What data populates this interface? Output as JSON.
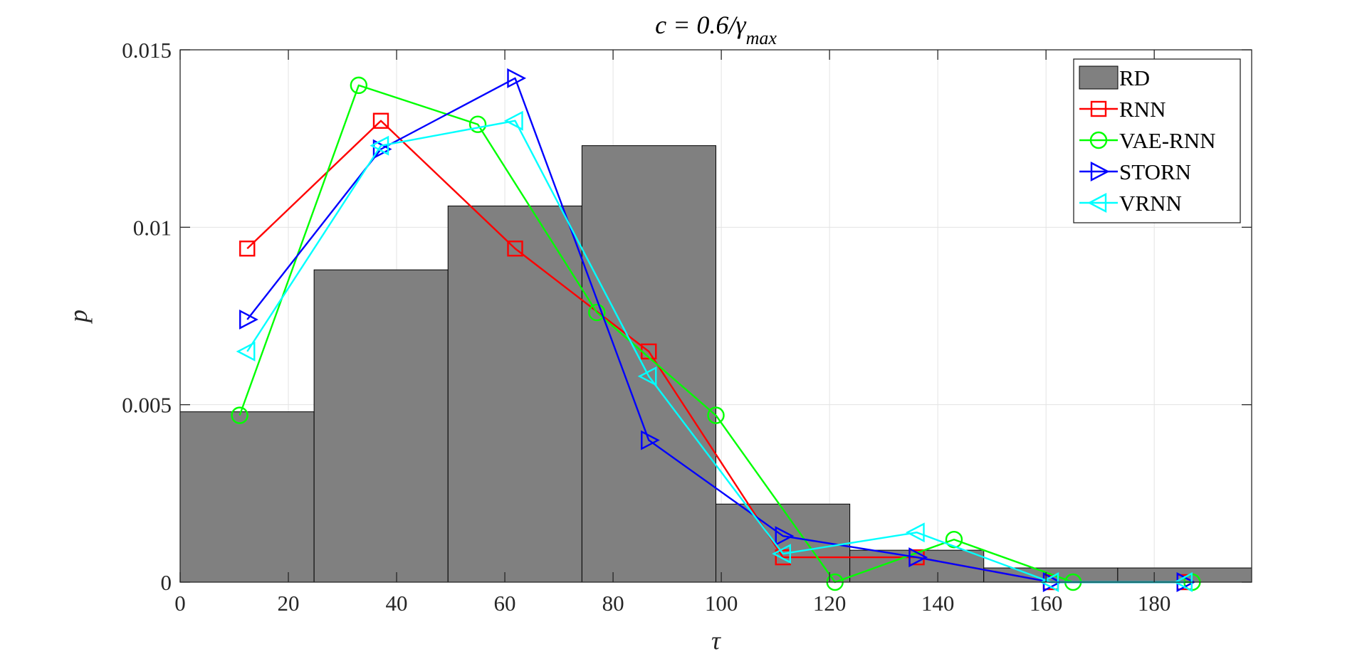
{
  "chart_data": {
    "type": "bar",
    "title": "c = 0.6/γmax",
    "xlabel": "τ",
    "ylabel": "p",
    "xlim": [
      0,
      198
    ],
    "ylim": [
      0,
      0.015
    ],
    "xticks": [
      0,
      20,
      40,
      60,
      80,
      100,
      120,
      140,
      160,
      180
    ],
    "xtick_labels": [
      "0",
      "20",
      "40",
      "60",
      "80",
      "100",
      "120",
      "140",
      "160",
      "180"
    ],
    "yticks": [
      0,
      0.005,
      0.01,
      0.015
    ],
    "ytick_labels": [
      "0",
      "0.005",
      "0.01",
      "0.015"
    ],
    "grid": true,
    "legend_position": "top-right",
    "histogram": {
      "name": "RD",
      "color": "#808080",
      "bins": [
        {
          "x0": 0,
          "x1": 24.75,
          "value": 0.0048
        },
        {
          "x0": 24.75,
          "x1": 49.5,
          "value": 0.0088
        },
        {
          "x0": 49.5,
          "x1": 74.25,
          "value": 0.0106
        },
        {
          "x0": 74.25,
          "x1": 99,
          "value": 0.0123
        },
        {
          "x0": 99,
          "x1": 123.75,
          "value": 0.0022
        },
        {
          "x0": 123.75,
          "x1": 148.5,
          "value": 0.0009
        },
        {
          "x0": 148.5,
          "x1": 173.25,
          "value": 0.0004
        },
        {
          "x0": 173.25,
          "x1": 198,
          "value": 0.0004
        }
      ]
    },
    "series": [
      {
        "name": "RNN",
        "color": "#ff0000",
        "marker": "square",
        "x": [
          12.4,
          37.1,
          61.9,
          86.6,
          111.4,
          136.1,
          160.9,
          185.6
        ],
        "y": [
          0.0094,
          0.013,
          0.0094,
          0.0065,
          0.0007,
          0.0007,
          0,
          0
        ]
      },
      {
        "name": "VAE-RNN",
        "color": "#00ff00",
        "marker": "circle",
        "x": [
          11,
          33,
          55,
          77,
          99,
          121,
          143,
          165,
          187
        ],
        "y": [
          0.0047,
          0.014,
          0.0129,
          0.0076,
          0.0047,
          0,
          0.0012,
          0,
          0
        ]
      },
      {
        "name": "STORN",
        "color": "#0000ff",
        "marker": "triangle-right",
        "x": [
          12.4,
          37.1,
          61.9,
          86.6,
          111.4,
          136.1,
          160.9,
          185.6
        ],
        "y": [
          0.0074,
          0.0122,
          0.0142,
          0.004,
          0.0013,
          0.0007,
          0,
          0
        ]
      },
      {
        "name": "VRNN",
        "color": "#00ffff",
        "marker": "triangle-left",
        "x": [
          12.4,
          37.1,
          61.9,
          86.6,
          111.4,
          136.1,
          160.9,
          185.6
        ],
        "y": [
          0.0065,
          0.0123,
          0.013,
          0.0058,
          0.0008,
          0.0014,
          0,
          0
        ]
      }
    ]
  }
}
